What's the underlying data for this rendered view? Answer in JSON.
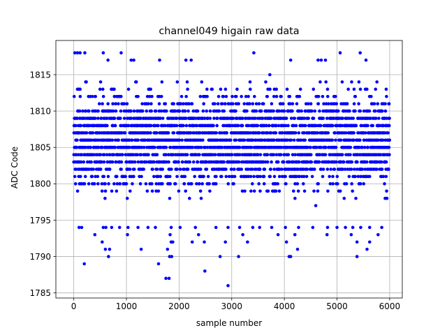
{
  "chart_data": {
    "type": "scatter",
    "title": "channel049 higain raw data",
    "xlabel": "sample number",
    "ylabel": "ADC Code",
    "xlim": [
      -340,
      6240
    ],
    "ylim": [
      1784.3,
      1819.7
    ],
    "xticks": [
      "0",
      "1000",
      "2000",
      "3000",
      "4000",
      "5000",
      "6000"
    ],
    "yticks": [
      "1785",
      "1790",
      "1795",
      "1800",
      "1805",
      "1810",
      "1815"
    ],
    "grid": true,
    "marker_color": "#0000ff",
    "series": [
      {
        "n_samples": 6000,
        "dense_range": [
          1797,
          1815
        ],
        "points": [
          [
            20,
            1818
          ],
          [
            70,
            1818
          ],
          [
            120,
            1818
          ],
          [
            210,
            1818
          ],
          [
            560,
            1818
          ],
          [
            900,
            1818
          ],
          [
            3420,
            1818
          ],
          [
            5060,
            1818
          ],
          [
            5440,
            1818
          ],
          [
            650,
            1817
          ],
          [
            1090,
            1817
          ],
          [
            1140,
            1817
          ],
          [
            1630,
            1817
          ],
          [
            2130,
            1817
          ],
          [
            2230,
            1817
          ],
          [
            4120,
            1817
          ],
          [
            4640,
            1817
          ],
          [
            4700,
            1817
          ],
          [
            4780,
            1817
          ],
          [
            5550,
            1817
          ],
          [
            200,
            1789
          ],
          [
            1610,
            1789
          ],
          [
            660,
            1790
          ],
          [
            1820,
            1790
          ],
          [
            1860,
            1790
          ],
          [
            2780,
            1790
          ],
          [
            3130,
            1790
          ],
          [
            4090,
            1790
          ],
          [
            4120,
            1790
          ],
          [
            5380,
            1790
          ],
          [
            600,
            1791
          ],
          [
            680,
            1791
          ],
          [
            1280,
            1791
          ],
          [
            1780,
            1791
          ],
          [
            4250,
            1791
          ],
          [
            5570,
            1791
          ],
          [
            540,
            1792
          ],
          [
            1850,
            1792
          ],
          [
            1880,
            1792
          ],
          [
            2250,
            1792
          ],
          [
            2480,
            1792
          ],
          [
            2880,
            1792
          ],
          [
            3300,
            1792
          ],
          [
            4040,
            1792
          ],
          [
            5380,
            1792
          ],
          [
            5620,
            1792
          ],
          [
            400,
            1793
          ],
          [
            1020,
            1793
          ],
          [
            1830,
            1793
          ],
          [
            2370,
            1793
          ],
          [
            3210,
            1793
          ],
          [
            3880,
            1793
          ],
          [
            4200,
            1793
          ],
          [
            4810,
            1793
          ],
          [
            5270,
            1793
          ],
          [
            5780,
            1793
          ],
          [
            100,
            1794
          ],
          [
            150,
            1794
          ],
          [
            560,
            1794
          ],
          [
            610,
            1794
          ],
          [
            720,
            1794
          ],
          [
            870,
            1794
          ],
          [
            1030,
            1794
          ],
          [
            1220,
            1794
          ],
          [
            1410,
            1794
          ],
          [
            1550,
            1794
          ],
          [
            1850,
            1794
          ],
          [
            2020,
            1794
          ],
          [
            2310,
            1794
          ],
          [
            2700,
            1794
          ],
          [
            2930,
            1794
          ],
          [
            3150,
            1794
          ],
          [
            3400,
            1794
          ],
          [
            3530,
            1794
          ],
          [
            3760,
            1794
          ],
          [
            4020,
            1794
          ],
          [
            4270,
            1794
          ],
          [
            4540,
            1794
          ],
          [
            4820,
            1794
          ],
          [
            5000,
            1794
          ],
          [
            5160,
            1794
          ],
          [
            5300,
            1794
          ],
          [
            5450,
            1794
          ],
          [
            5620,
            1794
          ],
          [
            5850,
            1794
          ],
          [
            1750,
            1787
          ],
          [
            1810,
            1787
          ],
          [
            2490,
            1788
          ],
          [
            2930,
            1786
          ]
        ]
      }
    ]
  }
}
